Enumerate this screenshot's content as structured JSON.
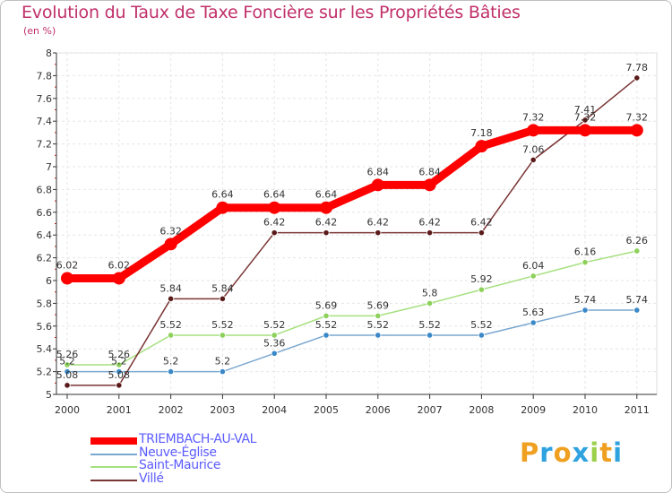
{
  "chart_data": {
    "type": "line",
    "title": "Evolution du Taux de Taxe Foncière sur les Propriétés Bâties",
    "ylabel": "(en %)",
    "xlabel": "",
    "ylim": [
      5,
      8
    ],
    "y_ticks": [
      "5",
      "5.2",
      "5.4",
      "5.6",
      "5.8",
      "6",
      "6.2",
      "6.4",
      "6.6",
      "6.8",
      "7",
      "7.2",
      "7.4",
      "7.6",
      "7.8",
      "8"
    ],
    "categories": [
      "2000",
      "2001",
      "2002",
      "2003",
      "2004",
      "2005",
      "2006",
      "2007",
      "2008",
      "2009",
      "2010",
      "2011"
    ],
    "series": [
      {
        "name": "TRIEMBACH-AU-VAL",
        "color": "#ff0000",
        "values": [
          6.02,
          6.02,
          6.32,
          6.64,
          6.64,
          6.64,
          6.84,
          6.84,
          7.18,
          7.32,
          7.32,
          7.32
        ],
        "labels": [
          "6.02",
          "6.02",
          "6.32",
          "6.64",
          "6.64",
          "6.64",
          "6.84",
          "6.84",
          "7.18",
          "7.32",
          "7.32",
          "7.32"
        ]
      },
      {
        "name": "Neuve-Église",
        "color": "#7aa7d0",
        "values": [
          5.2,
          5.2,
          5.2,
          5.2,
          5.36,
          5.52,
          5.52,
          5.52,
          5.52,
          5.63,
          5.74,
          5.74
        ],
        "labels": [
          "5.2",
          "5.2",
          "5.2",
          "5.2",
          "5.36",
          "5.52",
          "5.52",
          "5.52",
          "5.52",
          "5.63",
          "5.74",
          "5.74"
        ]
      },
      {
        "name": "Saint-Maurice",
        "color": "#a6e07f",
        "values": [
          5.26,
          5.26,
          5.52,
          5.52,
          5.52,
          5.69,
          5.69,
          5.8,
          5.92,
          6.04,
          6.16,
          6.26
        ],
        "labels": [
          "5.26",
          "5.26",
          "5.52",
          "5.52",
          "5.52",
          "5.69",
          "5.69",
          "5.8",
          "5.92",
          "6.04",
          "6.16",
          "6.26"
        ]
      },
      {
        "name": "Villé",
        "color": "#7a3434",
        "values": [
          5.08,
          5.08,
          5.84,
          5.84,
          6.42,
          6.42,
          6.42,
          6.42,
          6.42,
          7.06,
          7.41,
          7.78
        ],
        "labels": [
          "5.08",
          "5.08",
          "5.84",
          "5.84",
          "6.42",
          "6.42",
          "6.42",
          "6.42",
          "6.42",
          "7.06",
          "7.41",
          "7.78"
        ]
      }
    ],
    "legend_position": "bottom-left",
    "grid": true
  },
  "logo": {
    "letters": [
      "P",
      "r",
      "o",
      "x",
      "i",
      "t",
      "i"
    ],
    "colors": [
      "#f0a020",
      "#2fa2e0",
      "#f0a020",
      "#2fa2e0",
      "#9bd04a",
      "#f0a020",
      "#2fa2e0"
    ]
  }
}
